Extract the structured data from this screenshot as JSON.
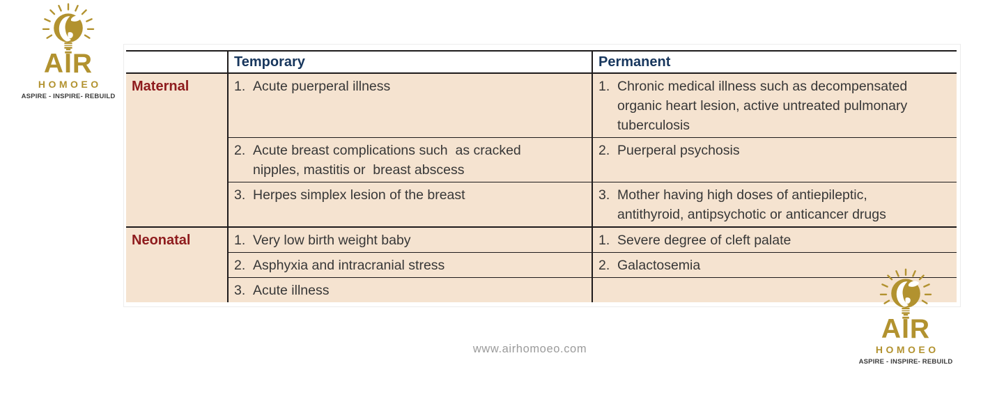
{
  "page": {
    "footer_url": "www.airhomoeo.com"
  },
  "logo": {
    "name": "AIR",
    "subname": "HOMOEO",
    "tagline": "ASPIRE - INSPIRE- REBUILD",
    "icon": "lightbulb-with-mother-and-child-icon",
    "gold": "#B2922F",
    "tagline_color": "#3b3b3b"
  },
  "table": {
    "colors": {
      "cell_background": "#F5E3D0",
      "border": "#1d1a1b",
      "header_text": "#17365D",
      "category_text": "#8E1B1D",
      "body_text": "#373737"
    },
    "columns": {
      "category": "",
      "temporary": "Temporary",
      "permanent": "Permanent"
    },
    "sections": [
      {
        "category": "Maternal",
        "rows": [
          {
            "temporary": {
              "num": "1.",
              "lines": [
                "Acute puerperal illness"
              ]
            },
            "permanent": {
              "num": "1.",
              "lines": [
                "Chronic medical illness such as decompensated",
                "organic heart lesion, active untreated pulmonary",
                "tuberculosis"
              ]
            }
          },
          {
            "temporary": {
              "num": "2.",
              "lines": [
                "Acute breast complications such  as cracked",
                "nipples, mastitis or  breast abscess"
              ]
            },
            "permanent": {
              "num": "2.",
              "lines": [
                "Puerperal psychosis"
              ]
            }
          },
          {
            "temporary": {
              "num": "3.",
              "lines": [
                "Herpes simplex lesion of the breast"
              ]
            },
            "permanent": {
              "num": "3.",
              "lines": [
                "Mother having high doses of antiepileptic,",
                "antithyroid, antipsychotic or anticancer drugs"
              ]
            }
          }
        ]
      },
      {
        "category": "Neonatal",
        "rows": [
          {
            "temporary": {
              "num": "1.",
              "lines": [
                "Very low birth weight baby"
              ]
            },
            "permanent": {
              "num": "1.",
              "lines": [
                "Severe degree of cleft palate"
              ]
            }
          },
          {
            "temporary": {
              "num": "2.",
              "lines": [
                "Asphyxia and intracranial stress"
              ]
            },
            "permanent": {
              "num": "2.",
              "lines": [
                "Galactosemia"
              ]
            }
          },
          {
            "temporary": {
              "num": "3.",
              "lines": [
                "Acute illness"
              ]
            },
            "permanent": {
              "num": "",
              "lines": []
            }
          }
        ]
      }
    ]
  }
}
